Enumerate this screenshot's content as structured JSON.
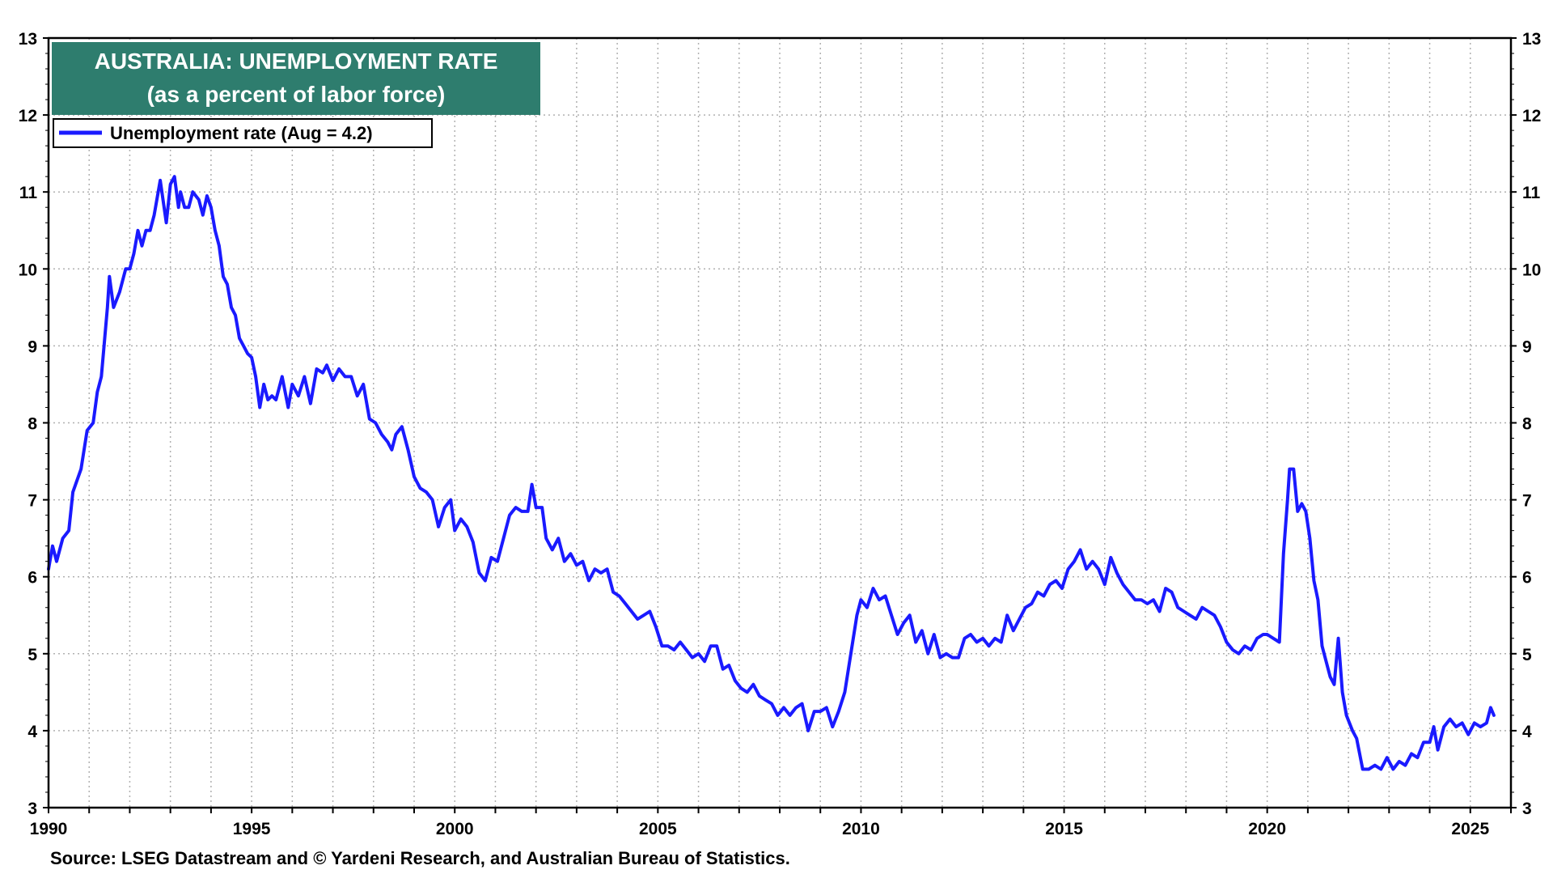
{
  "chart_data": {
    "type": "line",
    "title": "AUSTRALIA: UNEMPLOYMENT RATE",
    "subtitle": "(as a percent of labor force)",
    "source": "Source: LSEG Datastream and © Yardeni Research, and Australian Bureau of Statistics.",
    "xlim": [
      1990,
      2026
    ],
    "ylim": [
      3,
      13
    ],
    "x_ticks": [
      "1990",
      "1995",
      "2000",
      "2005",
      "2010",
      "2015",
      "2020",
      "2025"
    ],
    "y_ticks": [
      "3",
      "4",
      "5",
      "6",
      "7",
      "8",
      "9",
      "10",
      "11",
      "12",
      "13"
    ],
    "grid": true,
    "legend_position": "top-left",
    "colors": {
      "line": "#1a1aff",
      "title_box": "#2e7d6e",
      "title_text": "#ffffff",
      "grid": "#b0b0b0",
      "frame": "#000000"
    },
    "series": [
      {
        "name": "Unemployment rate (Aug = 4.2)",
        "points": [
          [
            1990.0,
            6.1
          ],
          [
            1990.1,
            6.4
          ],
          [
            1990.2,
            6.2
          ],
          [
            1990.35,
            6.5
          ],
          [
            1990.5,
            6.6
          ],
          [
            1990.6,
            7.1
          ],
          [
            1990.8,
            7.4
          ],
          [
            1990.95,
            7.9
          ],
          [
            1991.1,
            8.0
          ],
          [
            1991.2,
            8.4
          ],
          [
            1991.3,
            8.6
          ],
          [
            1991.45,
            9.5
          ],
          [
            1991.5,
            9.9
          ],
          [
            1991.6,
            9.5
          ],
          [
            1991.75,
            9.7
          ],
          [
            1991.9,
            10.0
          ],
          [
            1992.0,
            10.0
          ],
          [
            1992.1,
            10.2
          ],
          [
            1992.2,
            10.5
          ],
          [
            1992.3,
            10.3
          ],
          [
            1992.4,
            10.5
          ],
          [
            1992.5,
            10.5
          ],
          [
            1992.6,
            10.7
          ],
          [
            1992.75,
            11.15
          ],
          [
            1992.9,
            10.6
          ],
          [
            1993.0,
            11.1
          ],
          [
            1993.1,
            11.2
          ],
          [
            1993.2,
            10.8
          ],
          [
            1993.25,
            11.0
          ],
          [
            1993.35,
            10.8
          ],
          [
            1993.45,
            10.8
          ],
          [
            1993.55,
            11.0
          ],
          [
            1993.7,
            10.9
          ],
          [
            1993.8,
            10.7
          ],
          [
            1993.9,
            10.95
          ],
          [
            1994.0,
            10.8
          ],
          [
            1994.1,
            10.5
          ],
          [
            1994.2,
            10.3
          ],
          [
            1994.3,
            9.9
          ],
          [
            1994.4,
            9.8
          ],
          [
            1994.5,
            9.5
          ],
          [
            1994.6,
            9.4
          ],
          [
            1994.7,
            9.1
          ],
          [
            1994.8,
            9.0
          ],
          [
            1994.9,
            8.9
          ],
          [
            1995.0,
            8.85
          ],
          [
            1995.1,
            8.6
          ],
          [
            1995.2,
            8.2
          ],
          [
            1995.3,
            8.5
          ],
          [
            1995.4,
            8.3
          ],
          [
            1995.5,
            8.35
          ],
          [
            1995.6,
            8.3
          ],
          [
            1995.75,
            8.6
          ],
          [
            1995.9,
            8.2
          ],
          [
            1996.0,
            8.5
          ],
          [
            1996.15,
            8.35
          ],
          [
            1996.3,
            8.6
          ],
          [
            1996.45,
            8.25
          ],
          [
            1996.6,
            8.7
          ],
          [
            1996.75,
            8.65
          ],
          [
            1996.85,
            8.75
          ],
          [
            1997.0,
            8.55
          ],
          [
            1997.15,
            8.7
          ],
          [
            1997.3,
            8.6
          ],
          [
            1997.45,
            8.6
          ],
          [
            1997.6,
            8.35
          ],
          [
            1997.75,
            8.5
          ],
          [
            1997.9,
            8.05
          ],
          [
            1998.05,
            8.0
          ],
          [
            1998.2,
            7.85
          ],
          [
            1998.35,
            7.75
          ],
          [
            1998.45,
            7.65
          ],
          [
            1998.55,
            7.85
          ],
          [
            1998.7,
            7.95
          ],
          [
            1998.85,
            7.65
          ],
          [
            1999.0,
            7.3
          ],
          [
            1999.15,
            7.15
          ],
          [
            1999.3,
            7.1
          ],
          [
            1999.45,
            7.0
          ],
          [
            1999.6,
            6.65
          ],
          [
            1999.75,
            6.9
          ],
          [
            1999.9,
            7.0
          ],
          [
            2000.0,
            6.6
          ],
          [
            2000.15,
            6.75
          ],
          [
            2000.3,
            6.65
          ],
          [
            2000.45,
            6.45
          ],
          [
            2000.6,
            6.05
          ],
          [
            2000.75,
            5.95
          ],
          [
            2000.9,
            6.25
          ],
          [
            2001.05,
            6.2
          ],
          [
            2001.2,
            6.5
          ],
          [
            2001.35,
            6.8
          ],
          [
            2001.5,
            6.9
          ],
          [
            2001.65,
            6.85
          ],
          [
            2001.8,
            6.85
          ],
          [
            2001.9,
            7.2
          ],
          [
            2002.0,
            6.9
          ],
          [
            2002.15,
            6.9
          ],
          [
            2002.25,
            6.5
          ],
          [
            2002.4,
            6.35
          ],
          [
            2002.55,
            6.5
          ],
          [
            2002.7,
            6.2
          ],
          [
            2002.85,
            6.3
          ],
          [
            2003.0,
            6.15
          ],
          [
            2003.15,
            6.2
          ],
          [
            2003.3,
            5.95
          ],
          [
            2003.45,
            6.1
          ],
          [
            2003.6,
            6.05
          ],
          [
            2003.75,
            6.1
          ],
          [
            2003.9,
            5.8
          ],
          [
            2004.05,
            5.75
          ],
          [
            2004.2,
            5.65
          ],
          [
            2004.35,
            5.55
          ],
          [
            2004.5,
            5.45
          ],
          [
            2004.65,
            5.5
          ],
          [
            2004.8,
            5.55
          ],
          [
            2004.95,
            5.35
          ],
          [
            2005.1,
            5.1
          ],
          [
            2005.25,
            5.1
          ],
          [
            2005.4,
            5.05
          ],
          [
            2005.55,
            5.15
          ],
          [
            2005.7,
            5.05
          ],
          [
            2005.85,
            4.95
          ],
          [
            2006.0,
            5.0
          ],
          [
            2006.15,
            4.9
          ],
          [
            2006.3,
            5.1
          ],
          [
            2006.45,
            5.1
          ],
          [
            2006.6,
            4.8
          ],
          [
            2006.75,
            4.85
          ],
          [
            2006.9,
            4.65
          ],
          [
            2007.05,
            4.55
          ],
          [
            2007.2,
            4.5
          ],
          [
            2007.35,
            4.6
          ],
          [
            2007.5,
            4.45
          ],
          [
            2007.65,
            4.4
          ],
          [
            2007.8,
            4.35
          ],
          [
            2007.95,
            4.2
          ],
          [
            2008.1,
            4.3
          ],
          [
            2008.25,
            4.2
          ],
          [
            2008.4,
            4.3
          ],
          [
            2008.55,
            4.35
          ],
          [
            2008.7,
            4.0
          ],
          [
            2008.85,
            4.25
          ],
          [
            2009.0,
            4.25
          ],
          [
            2009.15,
            4.3
          ],
          [
            2009.3,
            4.05
          ],
          [
            2009.45,
            4.25
          ],
          [
            2009.6,
            4.5
          ],
          [
            2009.75,
            5.0
          ],
          [
            2009.9,
            5.5
          ],
          [
            2010.0,
            5.7
          ],
          [
            2010.15,
            5.6
          ],
          [
            2010.3,
            5.85
          ],
          [
            2010.45,
            5.7
          ],
          [
            2010.6,
            5.75
          ],
          [
            2010.75,
            5.5
          ],
          [
            2010.9,
            5.25
          ],
          [
            2011.05,
            5.4
          ],
          [
            2011.2,
            5.5
          ],
          [
            2011.35,
            5.15
          ],
          [
            2011.5,
            5.3
          ],
          [
            2011.65,
            5.0
          ],
          [
            2011.8,
            5.25
          ],
          [
            2011.95,
            4.95
          ],
          [
            2012.1,
            5.0
          ],
          [
            2012.25,
            4.95
          ],
          [
            2012.4,
            4.95
          ],
          [
            2012.55,
            5.2
          ],
          [
            2012.7,
            5.25
          ],
          [
            2012.85,
            5.15
          ],
          [
            2013.0,
            5.2
          ],
          [
            2013.15,
            5.1
          ],
          [
            2013.3,
            5.2
          ],
          [
            2013.45,
            5.15
          ],
          [
            2013.6,
            5.5
          ],
          [
            2013.75,
            5.3
          ],
          [
            2013.9,
            5.45
          ],
          [
            2014.05,
            5.6
          ],
          [
            2014.2,
            5.65
          ],
          [
            2014.35,
            5.8
          ],
          [
            2014.5,
            5.75
          ],
          [
            2014.65,
            5.9
          ],
          [
            2014.8,
            5.95
          ],
          [
            2014.95,
            5.85
          ],
          [
            2015.1,
            6.1
          ],
          [
            2015.25,
            6.2
          ],
          [
            2015.4,
            6.35
          ],
          [
            2015.55,
            6.1
          ],
          [
            2015.7,
            6.2
          ],
          [
            2015.85,
            6.1
          ],
          [
            2016.0,
            5.9
          ],
          [
            2016.15,
            6.25
          ],
          [
            2016.3,
            6.05
          ],
          [
            2016.45,
            5.9
          ],
          [
            2016.6,
            5.8
          ],
          [
            2016.75,
            5.7
          ],
          [
            2016.9,
            5.7
          ],
          [
            2017.05,
            5.65
          ],
          [
            2017.2,
            5.7
          ],
          [
            2017.35,
            5.55
          ],
          [
            2017.5,
            5.85
          ],
          [
            2017.65,
            5.8
          ],
          [
            2017.8,
            5.6
          ],
          [
            2017.95,
            5.55
          ],
          [
            2018.1,
            5.5
          ],
          [
            2018.25,
            5.45
          ],
          [
            2018.4,
            5.6
          ],
          [
            2018.55,
            5.55
          ],
          [
            2018.7,
            5.5
          ],
          [
            2018.85,
            5.35
          ],
          [
            2019.0,
            5.15
          ],
          [
            2019.15,
            5.05
          ],
          [
            2019.3,
            5.0
          ],
          [
            2019.45,
            5.1
          ],
          [
            2019.6,
            5.05
          ],
          [
            2019.75,
            5.2
          ],
          [
            2019.9,
            5.25
          ],
          [
            2020.0,
            5.25
          ],
          [
            2020.15,
            5.2
          ],
          [
            2020.3,
            5.15
          ],
          [
            2020.4,
            6.3
          ],
          [
            2020.5,
            7.0
          ],
          [
            2020.55,
            7.4
          ],
          [
            2020.65,
            7.4
          ],
          [
            2020.75,
            6.85
          ],
          [
            2020.85,
            6.95
          ],
          [
            2020.95,
            6.85
          ],
          [
            2021.05,
            6.5
          ],
          [
            2021.15,
            5.95
          ],
          [
            2021.25,
            5.7
          ],
          [
            2021.35,
            5.1
          ],
          [
            2021.45,
            4.9
          ],
          [
            2021.55,
            4.7
          ],
          [
            2021.65,
            4.6
          ],
          [
            2021.75,
            5.2
          ],
          [
            2021.85,
            4.5
          ],
          [
            2021.95,
            4.2
          ],
          [
            2022.1,
            4.0
          ],
          [
            2022.2,
            3.9
          ],
          [
            2022.35,
            3.5
          ],
          [
            2022.5,
            3.5
          ],
          [
            2022.65,
            3.55
          ],
          [
            2022.8,
            3.5
          ],
          [
            2022.95,
            3.65
          ],
          [
            2023.1,
            3.5
          ],
          [
            2023.25,
            3.6
          ],
          [
            2023.4,
            3.55
          ],
          [
            2023.55,
            3.7
          ],
          [
            2023.7,
            3.65
          ],
          [
            2023.85,
            3.85
          ],
          [
            2024.0,
            3.85
          ],
          [
            2024.1,
            4.05
          ],
          [
            2024.2,
            3.75
          ],
          [
            2024.35,
            4.05
          ],
          [
            2024.5,
            4.15
          ],
          [
            2024.65,
            4.05
          ],
          [
            2024.8,
            4.1
          ],
          [
            2024.95,
            3.95
          ],
          [
            2025.1,
            4.1
          ],
          [
            2025.25,
            4.05
          ],
          [
            2025.4,
            4.1
          ],
          [
            2025.5,
            4.3
          ],
          [
            2025.58,
            4.2
          ]
        ]
      }
    ]
  }
}
